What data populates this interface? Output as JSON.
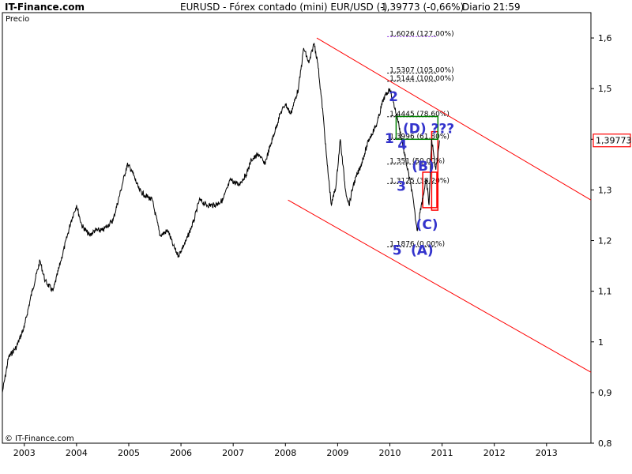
{
  "header": {
    "brand": "IT-Finance.com",
    "title": "EURUSD - Fórex contado (mini) EUR/USD (-)",
    "price_change": "1,39773 (-0,66%)",
    "period": "Diario",
    "time": "21:59"
  },
  "footer": {
    "copyright": "© IT-Finance.com"
  },
  "chart_data": {
    "type": "line",
    "title": "EURUSD - Fórex contado (mini) EUR/USD (-)",
    "ylabel": "Precio",
    "xlabel": "",
    "ylim": [
      0.8,
      1.65
    ],
    "xlim": [
      2002.58,
      2013.85
    ],
    "grid": false,
    "y_ticks": [
      {
        "value": 0.8,
        "label": "0,8"
      },
      {
        "value": 0.9,
        "label": "0,9"
      },
      {
        "value": 1.0,
        "label": "1"
      },
      {
        "value": 1.1,
        "label": "1,1"
      },
      {
        "value": 1.2,
        "label": "1,2"
      },
      {
        "value": 1.3,
        "label": "1,3"
      },
      {
        "value": 1.4,
        "label": ""
      },
      {
        "value": 1.5,
        "label": "1,5"
      },
      {
        "value": 1.6,
        "label": "1,6"
      }
    ],
    "x_ticks": [
      {
        "value": 2003,
        "label": "2003"
      },
      {
        "value": 2004,
        "label": "2004"
      },
      {
        "value": 2005,
        "label": "2005"
      },
      {
        "value": 2006,
        "label": "2006"
      },
      {
        "value": 2007,
        "label": "2007"
      },
      {
        "value": 2008,
        "label": "2008"
      },
      {
        "value": 2009,
        "label": "2009"
      },
      {
        "value": 2010,
        "label": "2010"
      },
      {
        "value": 2011,
        "label": "2011"
      },
      {
        "value": 2012,
        "label": "2012"
      },
      {
        "value": 2013,
        "label": "2013"
      }
    ],
    "last_price": {
      "value": 1.39773,
      "label": "1,39773",
      "color": "#ff0000"
    },
    "series": [
      {
        "color": "#000000",
        "x": [
          2002.58,
          2002.7,
          2002.85,
          2003.0,
          2003.15,
          2003.3,
          2003.4,
          2003.55,
          2003.7,
          2003.9,
          2004.0,
          2004.1,
          2004.25,
          2004.35,
          2004.5,
          2004.7,
          2004.85,
          2004.97,
          2005.05,
          2005.2,
          2005.3,
          2005.45,
          2005.6,
          2005.75,
          2005.85,
          2005.95,
          2006.1,
          2006.25,
          2006.35,
          2006.5,
          2006.65,
          2006.8,
          2006.95,
          2007.1,
          2007.25,
          2007.35,
          2007.5,
          2007.6,
          2007.75,
          2007.9,
          2008.0,
          2008.1,
          2008.25,
          2008.35,
          2008.45,
          2008.55,
          2008.62,
          2008.72,
          2008.8,
          2008.88,
          2008.97,
          2009.05,
          2009.15,
          2009.22,
          2009.3,
          2009.45,
          2009.6,
          2009.75,
          2009.88,
          2010.0,
          2010.15,
          2010.3,
          2010.42,
          2010.52,
          2010.6,
          2010.7,
          2010.75,
          2010.8,
          2010.88,
          2010.95
        ],
        "y": [
          0.9,
          0.97,
          0.99,
          1.03,
          1.1,
          1.16,
          1.12,
          1.1,
          1.16,
          1.24,
          1.27,
          1.23,
          1.21,
          1.22,
          1.22,
          1.24,
          1.3,
          1.35,
          1.34,
          1.3,
          1.29,
          1.28,
          1.21,
          1.22,
          1.19,
          1.17,
          1.2,
          1.24,
          1.28,
          1.27,
          1.27,
          1.28,
          1.32,
          1.31,
          1.33,
          1.36,
          1.37,
          1.35,
          1.4,
          1.45,
          1.47,
          1.45,
          1.5,
          1.58,
          1.55,
          1.59,
          1.55,
          1.45,
          1.35,
          1.27,
          1.31,
          1.4,
          1.3,
          1.27,
          1.31,
          1.35,
          1.4,
          1.43,
          1.48,
          1.5,
          1.44,
          1.36,
          1.3,
          1.22,
          1.27,
          1.32,
          1.27,
          1.4,
          1.34,
          1.39773
        ]
      }
    ],
    "channel_lines": [
      {
        "color": "#ff0000",
        "x": [
          2008.6,
          2013.85
        ],
        "y": [
          1.6,
          1.28
        ]
      },
      {
        "color": "#ff0000",
        "x": [
          2008.05,
          2013.85
        ],
        "y": [
          1.28,
          0.94
        ]
      }
    ],
    "fib_levels": [
      {
        "value": 1.6026,
        "label": "1,6026 (127,00%)",
        "color": "#8a2be2"
      },
      {
        "value": 1.5307,
        "label": "1,5307 (105,00%)",
        "color": "#000000"
      },
      {
        "value": 1.5144,
        "label": "1,5144 (100,00%)",
        "color": "#000000"
      },
      {
        "value": 1.4445,
        "label": "1,4445 (78,60%)",
        "color": "#000000"
      },
      {
        "value": 1.3996,
        "label": "1,3996 (61,80%)",
        "color": "#000000"
      },
      {
        "value": 1.351,
        "label": "1,351 (50,00%)",
        "color": "#000000"
      },
      {
        "value": 1.3125,
        "label": "1,3125 (38,20%)",
        "color": "#000000"
      },
      {
        "value": 1.1876,
        "label": "1,1876 (0,00%)",
        "color": "#000000"
      }
    ],
    "wave_labels": [
      {
        "text": "2",
        "x": 2009.98,
        "y": 1.475
      },
      {
        "text": "1",
        "x": 2009.9,
        "y": 1.393
      },
      {
        "text": "4",
        "x": 2010.15,
        "y": 1.38
      },
      {
        "text": "(D) ???",
        "x": 2010.25,
        "y": 1.412
      },
      {
        "text": "(B)",
        "x": 2010.42,
        "y": 1.338
      },
      {
        "text": "3",
        "x": 2010.13,
        "y": 1.298
      },
      {
        "text": "(C)",
        "x": 2010.5,
        "y": 1.223
      },
      {
        "text": "5",
        "x": 2010.05,
        "y": 1.172
      },
      {
        "text": "(A)",
        "x": 2010.4,
        "y": 1.172
      }
    ],
    "annotation_boxes": [
      {
        "color": "#ff0000",
        "x": [
          2010.63,
          2010.9
        ],
        "y": [
          1.265,
          1.335
        ]
      },
      {
        "color": "#ff0000",
        "x": [
          2010.8,
          2010.92
        ],
        "y": [
          1.26,
          1.415
        ]
      },
      {
        "color": "#008000",
        "x": [
          2010.12,
          2010.92
        ],
        "y": [
          1.4,
          1.445
        ]
      }
    ]
  }
}
